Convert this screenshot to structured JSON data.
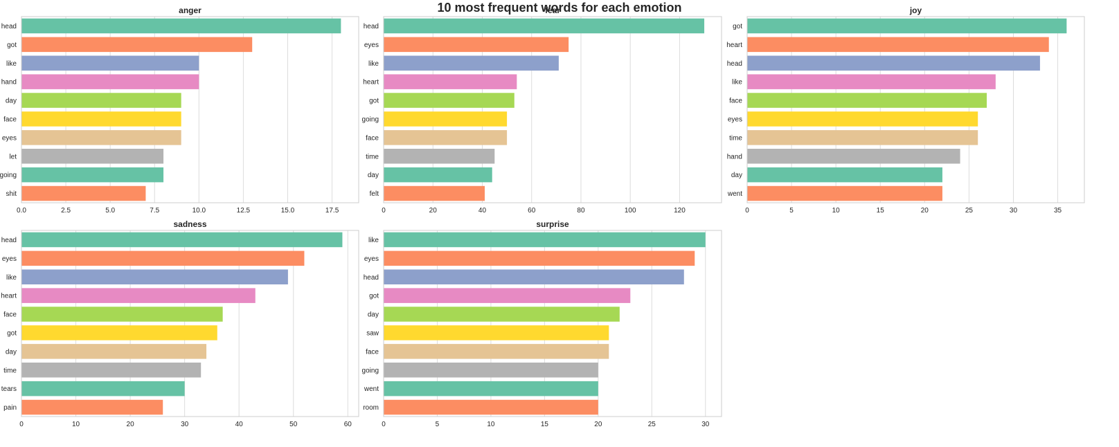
{
  "suptitle": "10 most frequent words for each emotion",
  "palette": [
    "#66c2a5",
    "#fc8d62",
    "#8da0cb",
    "#e78ac3",
    "#a6d854",
    "#ffd92f",
    "#e5c494",
    "#b3b3b3",
    "#66c2a5",
    "#fc8d62"
  ],
  "chart_data": [
    {
      "type": "bar",
      "orientation": "horizontal",
      "title": "anger",
      "categories": [
        "head",
        "got",
        "like",
        "hand",
        "day",
        "face",
        "eyes",
        "let",
        "going",
        "shit"
      ],
      "values": [
        18,
        13,
        10,
        10,
        9,
        9,
        9,
        8,
        8,
        7
      ],
      "xlim": [
        0,
        19
      ],
      "xticks": [
        0,
        2.5,
        5,
        7.5,
        10,
        12.5,
        15,
        17.5
      ],
      "xtick_labels": [
        "0.0",
        "2.5",
        "5.0",
        "7.5",
        "10.0",
        "12.5",
        "15.0",
        "17.5"
      ],
      "grid": "vertical"
    },
    {
      "type": "bar",
      "orientation": "horizontal",
      "title": "fear",
      "categories": [
        "head",
        "eyes",
        "like",
        "heart",
        "got",
        "going",
        "face",
        "time",
        "day",
        "felt"
      ],
      "values": [
        130,
        75,
        71,
        54,
        53,
        50,
        50,
        45,
        44,
        41
      ],
      "xlim": [
        0,
        137
      ],
      "xticks": [
        0,
        20,
        40,
        60,
        80,
        100,
        120
      ],
      "xtick_labels": [
        "0",
        "20",
        "40",
        "60",
        "80",
        "100",
        "120"
      ],
      "grid": "vertical"
    },
    {
      "type": "bar",
      "orientation": "horizontal",
      "title": "joy",
      "categories": [
        "got",
        "heart",
        "head",
        "like",
        "face",
        "eyes",
        "time",
        "hand",
        "day",
        "went"
      ],
      "values": [
        36,
        34,
        33,
        28,
        27,
        26,
        26,
        24,
        22,
        22
      ],
      "xlim": [
        0,
        38
      ],
      "xticks": [
        0,
        5,
        10,
        15,
        20,
        25,
        30,
        35
      ],
      "xtick_labels": [
        "0",
        "5",
        "10",
        "15",
        "20",
        "25",
        "30",
        "35"
      ],
      "grid": "vertical"
    },
    {
      "type": "bar",
      "orientation": "horizontal",
      "title": "sadness",
      "categories": [
        "head",
        "eyes",
        "like",
        "heart",
        "face",
        "got",
        "day",
        "time",
        "tears",
        "pain"
      ],
      "values": [
        59,
        52,
        49,
        43,
        37,
        36,
        34,
        33,
        30,
        26
      ],
      "xlim": [
        0,
        62
      ],
      "xticks": [
        0,
        10,
        20,
        30,
        40,
        50,
        60
      ],
      "xtick_labels": [
        "0",
        "10",
        "20",
        "30",
        "40",
        "50",
        "60"
      ],
      "grid": "vertical"
    },
    {
      "type": "bar",
      "orientation": "horizontal",
      "title": "surprise",
      "categories": [
        "like",
        "eyes",
        "head",
        "got",
        "day",
        "saw",
        "face",
        "going",
        "went",
        "room"
      ],
      "values": [
        30,
        29,
        28,
        23,
        22,
        21,
        21,
        20,
        20,
        20
      ],
      "xlim": [
        0,
        31.5
      ],
      "xticks": [
        0,
        5,
        10,
        15,
        20,
        25,
        30
      ],
      "xtick_labels": [
        "0",
        "5",
        "10",
        "15",
        "20",
        "25",
        "30"
      ],
      "grid": "vertical"
    }
  ]
}
